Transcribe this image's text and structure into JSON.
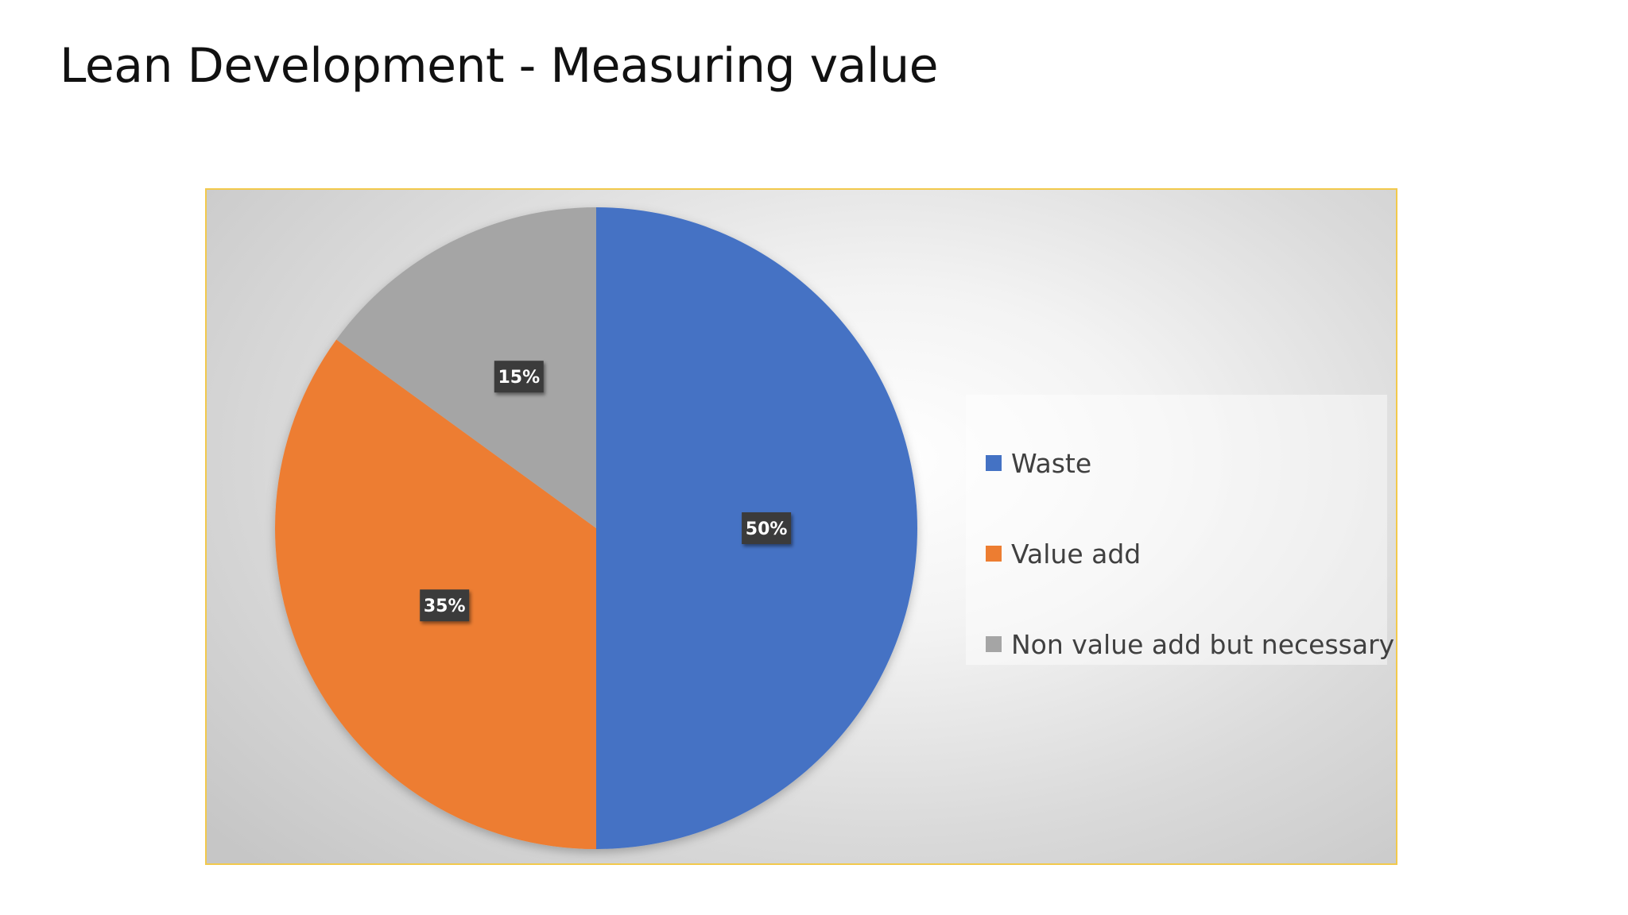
{
  "slide": {
    "title": "Lean Development - Measuring value"
  },
  "chart_data": {
    "type": "pie",
    "title": "",
    "categories": [
      "Waste",
      "Value add",
      "Non value add but necessary"
    ],
    "values": [
      50,
      35,
      15
    ],
    "labels": [
      "50%",
      "35%",
      "15%"
    ],
    "colors": [
      "#4472c4",
      "#ed7d31",
      "#a5a5a5"
    ],
    "legend_position": "right"
  }
}
